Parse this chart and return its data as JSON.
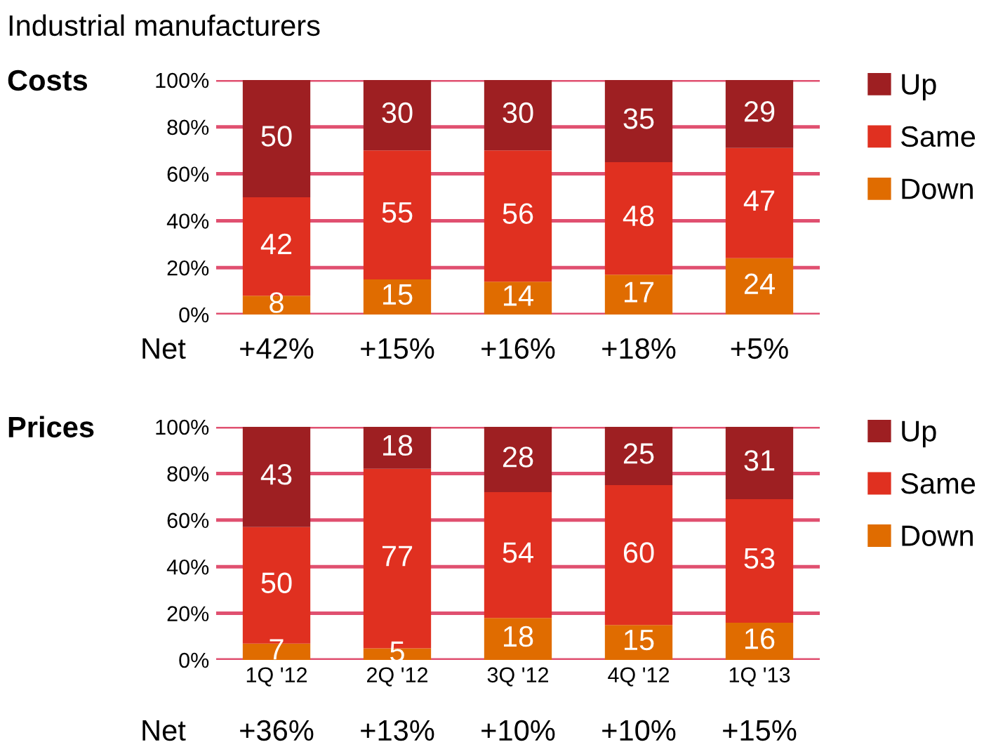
{
  "chart_data": [
    {
      "type": "bar",
      "title": "Industrial manufacturers",
      "subtitle": "Costs",
      "stacked": true,
      "categories": [
        null,
        null,
        null,
        null,
        null
      ],
      "series": [
        {
          "name": "Down",
          "color": "#e06c00",
          "values": [
            8,
            15,
            14,
            17,
            24
          ]
        },
        {
          "name": "Same",
          "color": "#e03020",
          "values": [
            42,
            55,
            56,
            48,
            47
          ]
        },
        {
          "name": "Up",
          "color": "#9e1f22",
          "values": [
            50,
            30,
            30,
            35,
            29
          ]
        }
      ],
      "ylim": [
        0,
        100
      ],
      "yticks": [
        {
          "value": 0,
          "label": "0%"
        },
        {
          "value": 20,
          "label": "20%"
        },
        {
          "value": 40,
          "label": "40%"
        },
        {
          "value": 60,
          "label": "60%"
        },
        {
          "value": 80,
          "label": "80%"
        },
        {
          "value": 100,
          "label": "100%"
        }
      ],
      "grid": "y",
      "legend": "right",
      "data_labels": true,
      "annotations": [
        "Net",
        "+42%",
        "+15%",
        "+16%",
        "+18%",
        "+5%"
      ]
    },
    {
      "type": "bar",
      "title": "Prices",
      "stacked": true,
      "categories": [
        "1Q '12",
        "2Q '12",
        "3Q '12",
        "4Q '12",
        "1Q '13"
      ],
      "series": [
        {
          "name": "Down",
          "color": "#e06c00",
          "values": [
            7,
            5,
            18,
            15,
            16
          ]
        },
        {
          "name": "Same",
          "color": "#e03020",
          "values": [
            50,
            77,
            54,
            60,
            53
          ]
        },
        {
          "name": "Up",
          "color": "#9e1f22",
          "values": [
            43,
            18,
            28,
            25,
            31
          ]
        }
      ],
      "ylim": [
        0,
        100
      ],
      "yticks": [
        {
          "value": 0,
          "label": "0%"
        },
        {
          "value": 20,
          "label": "20%"
        },
        {
          "value": 40,
          "label": "40%"
        },
        {
          "value": 60,
          "label": "60%"
        },
        {
          "value": 80,
          "label": "80%"
        },
        {
          "value": 100,
          "label": "100%"
        }
      ],
      "grid": "y",
      "legend": "right",
      "data_labels": true,
      "annotations": [
        "Net",
        "+36%",
        "+13%",
        "+10%",
        "+10%",
        "+15%"
      ]
    }
  ]
}
